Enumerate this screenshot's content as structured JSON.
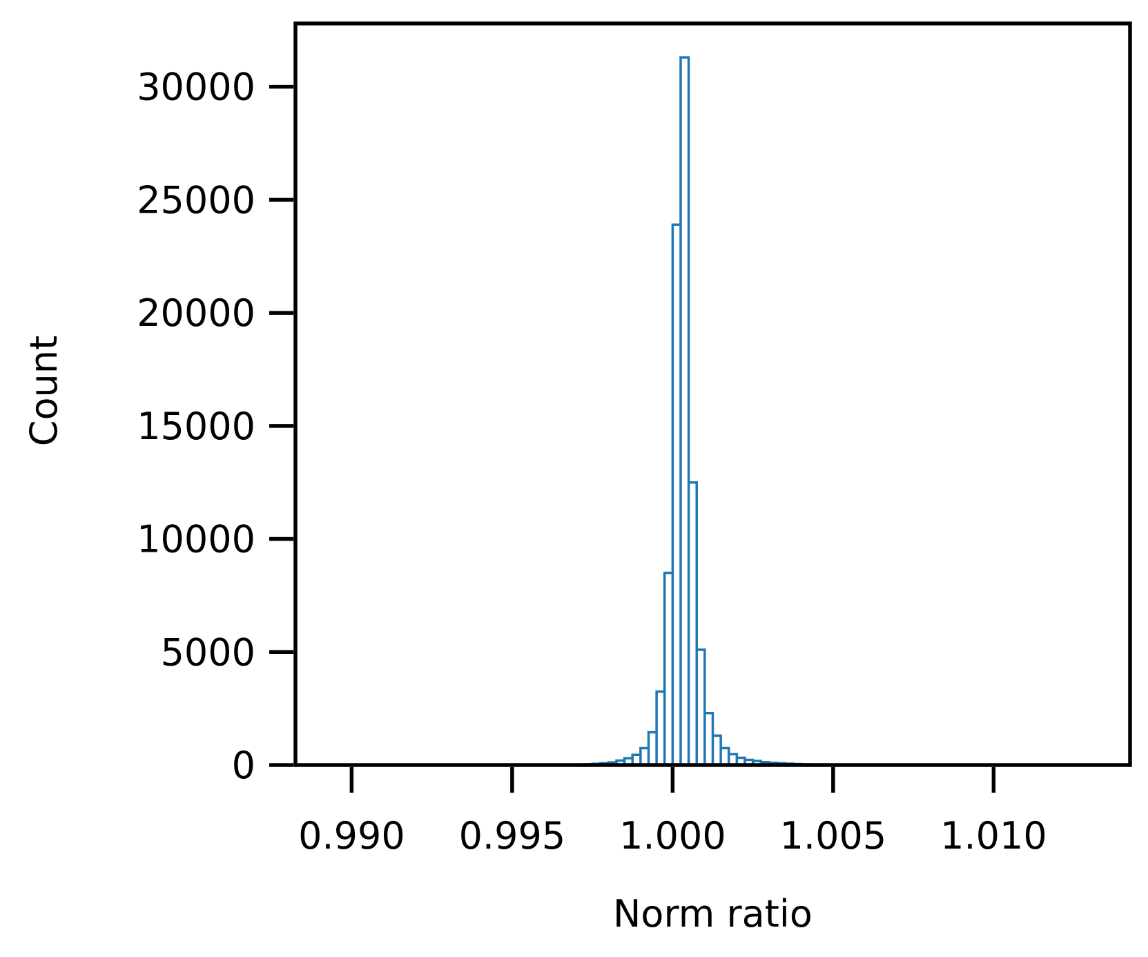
{
  "chart_data": {
    "type": "histogram",
    "xlabel": "Norm ratio",
    "ylabel": "Count",
    "xlim": [
      0.98825,
      1.01425
    ],
    "ylim": [
      0,
      32800
    ],
    "x_ticks": [
      0.99,
      0.995,
      1.0,
      1.005,
      1.01
    ],
    "x_tick_labels": [
      "0.990",
      "0.995",
      "1.000",
      "1.005",
      "1.010"
    ],
    "y_ticks": [
      0,
      5000,
      10000,
      15000,
      20000,
      25000,
      30000
    ],
    "y_tick_labels": [
      "0",
      "5000",
      "10000",
      "15000",
      "20000",
      "25000",
      "30000"
    ],
    "grid": false,
    "histtype": "step",
    "bin_width": 0.00025,
    "bins": [
      {
        "x0": 0.997,
        "count": 20
      },
      {
        "x0": 0.99725,
        "count": 35
      },
      {
        "x0": 0.9975,
        "count": 55
      },
      {
        "x0": 0.99775,
        "count": 80
      },
      {
        "x0": 0.998,
        "count": 120
      },
      {
        "x0": 0.99825,
        "count": 200
      },
      {
        "x0": 0.9985,
        "count": 300
      },
      {
        "x0": 0.99875,
        "count": 450
      },
      {
        "x0": 0.999,
        "count": 750
      },
      {
        "x0": 0.99925,
        "count": 1450
      },
      {
        "x0": 0.9995,
        "count": 3250
      },
      {
        "x0": 0.99975,
        "count": 8500
      },
      {
        "x0": 1.0,
        "count": 23900
      },
      {
        "x0": 1.00025,
        "count": 31300
      },
      {
        "x0": 1.0005,
        "count": 12500
      },
      {
        "x0": 1.00075,
        "count": 5100
      },
      {
        "x0": 1.001,
        "count": 2300
      },
      {
        "x0": 1.00125,
        "count": 1300
      },
      {
        "x0": 1.0015,
        "count": 750
      },
      {
        "x0": 1.00175,
        "count": 480
      },
      {
        "x0": 1.002,
        "count": 320
      },
      {
        "x0": 1.00225,
        "count": 230
      },
      {
        "x0": 1.0025,
        "count": 180
      },
      {
        "x0": 1.00275,
        "count": 130
      },
      {
        "x0": 1.003,
        "count": 100
      },
      {
        "x0": 1.00325,
        "count": 80
      },
      {
        "x0": 1.0035,
        "count": 60
      },
      {
        "x0": 1.00375,
        "count": 45
      },
      {
        "x0": 1.004,
        "count": 35
      },
      {
        "x0": 1.00425,
        "count": 25
      }
    ],
    "colors": {
      "series": "#1f77b4",
      "axes": "#000000"
    }
  }
}
